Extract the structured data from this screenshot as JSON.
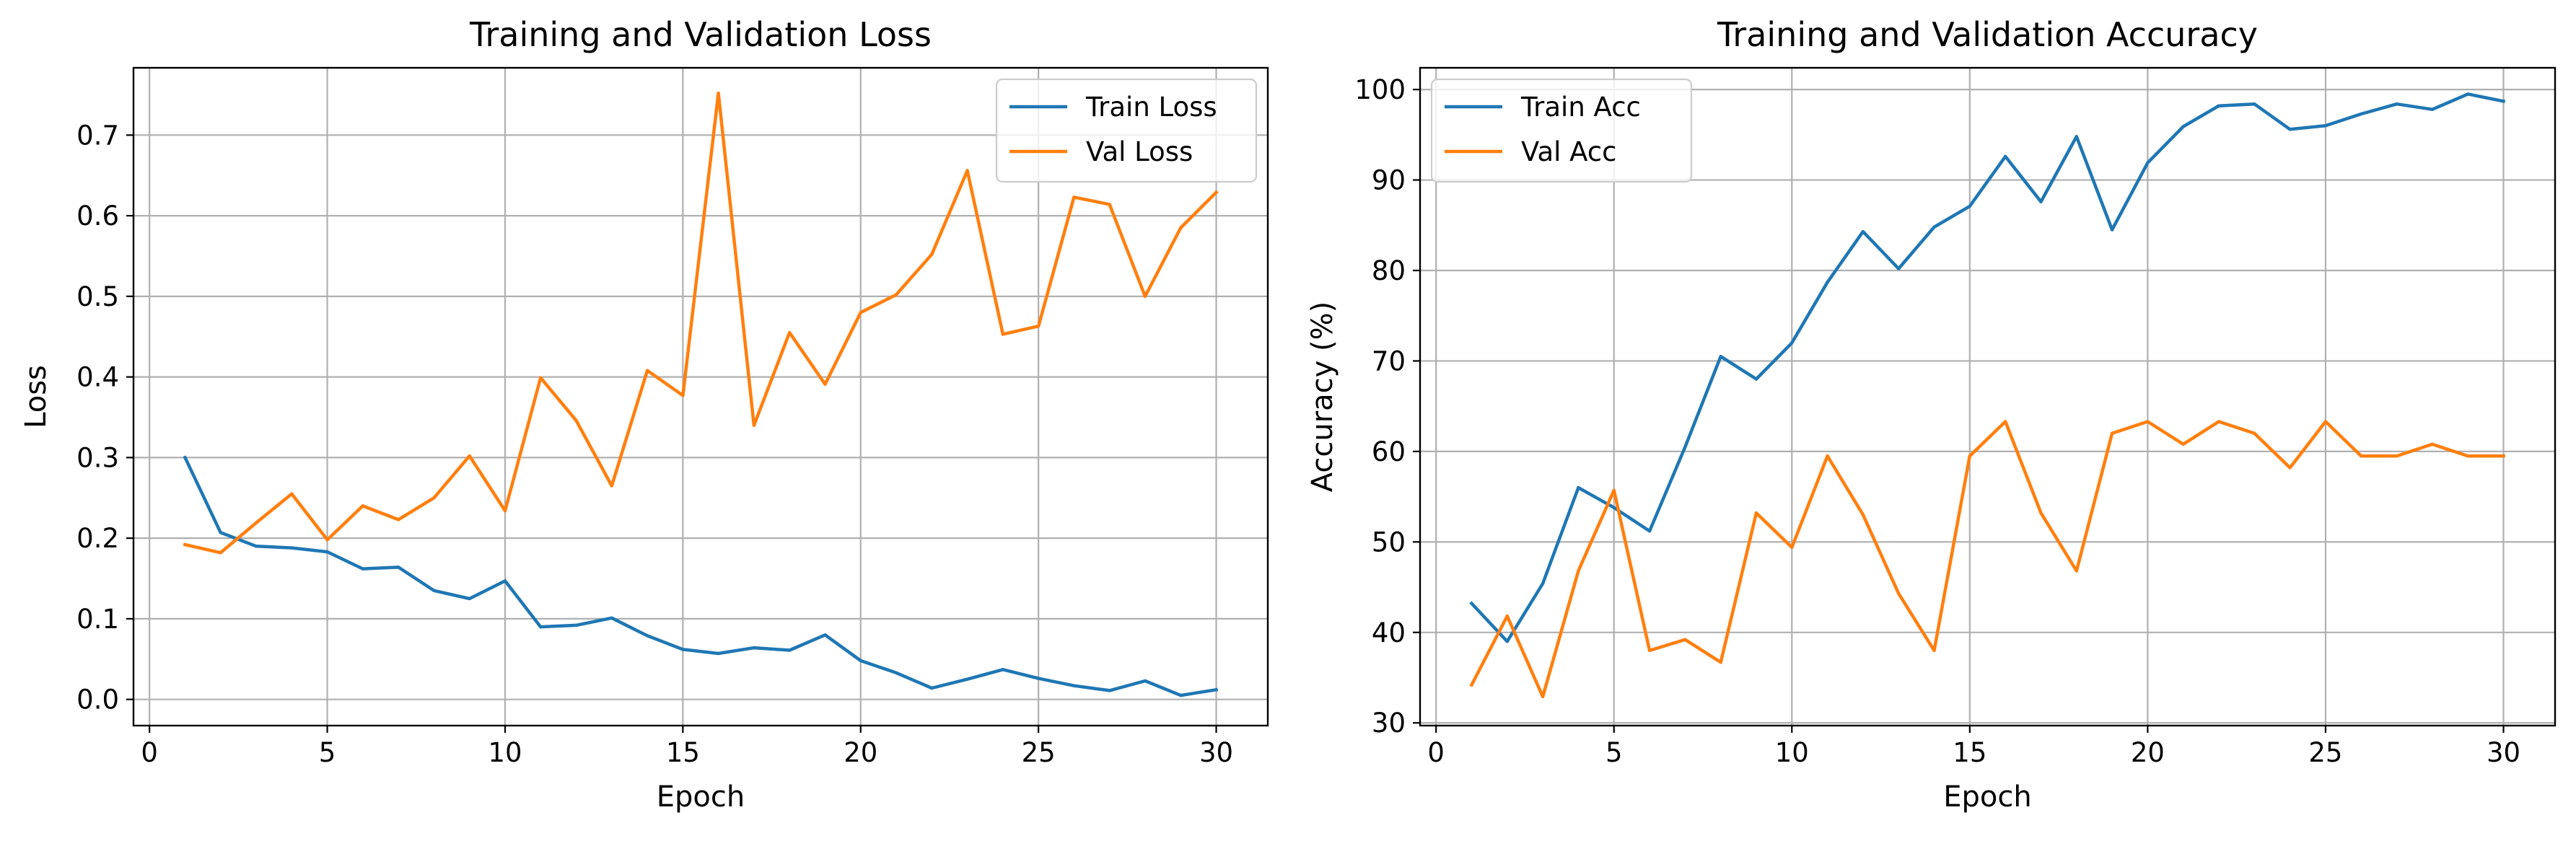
{
  "figure": {
    "colors": {
      "train": "#1f77b4",
      "val": "#ff7f0e",
      "grid": "#b0b0b0",
      "axes": "#000000"
    }
  },
  "chart_data": [
    {
      "type": "line",
      "title": "Training and Validation Loss",
      "xlabel": "Epoch",
      "ylabel": "Loss",
      "xlim": [
        -0.45,
        31.45
      ],
      "ylim": [
        -0.0325,
        0.7835
      ],
      "xticks": [
        0,
        5,
        10,
        15,
        20,
        25,
        30
      ],
      "xtick_labels": [
        "0",
        "5",
        "10",
        "15",
        "20",
        "25",
        "30"
      ],
      "yticks": [
        0.0,
        0.1,
        0.2,
        0.3,
        0.4,
        0.5,
        0.6,
        0.7
      ],
      "ytick_labels": [
        "0.0",
        "0.1",
        "0.2",
        "0.3",
        "0.4",
        "0.5",
        "0.6",
        "0.7"
      ],
      "grid": true,
      "legend_position": "top-right",
      "x": [
        1,
        2,
        3,
        4,
        5,
        6,
        7,
        8,
        9,
        10,
        11,
        12,
        13,
        14,
        15,
        16,
        17,
        18,
        19,
        20,
        21,
        22,
        23,
        24,
        25,
        26,
        27,
        28,
        29,
        30
      ],
      "series": [
        {
          "name": "Train Loss",
          "color": "#1f77b4",
          "values": [
            0.3,
            0.207,
            0.19,
            0.188,
            0.183,
            0.162,
            0.164,
            0.135,
            0.125,
            0.147,
            0.09,
            0.092,
            0.101,
            0.079,
            0.062,
            0.057,
            0.064,
            0.061,
            0.08,
            0.048,
            0.033,
            0.014,
            0.025,
            0.037,
            0.026,
            0.017,
            0.011,
            0.023,
            0.005,
            0.012
          ]
        },
        {
          "name": "Val Loss",
          "color": "#ff7f0e",
          "values": [
            0.192,
            0.182,
            0.219,
            0.255,
            0.198,
            0.24,
            0.223,
            0.25,
            0.302,
            0.234,
            0.399,
            0.346,
            0.265,
            0.408,
            0.377,
            0.752,
            0.34,
            0.455,
            0.391,
            0.48,
            0.502,
            0.552,
            0.656,
            0.453,
            0.463,
            0.623,
            0.614,
            0.5,
            0.585,
            0.629
          ]
        }
      ]
    },
    {
      "type": "line",
      "title": "Training and Validation Accuracy",
      "xlabel": "Epoch",
      "ylabel": "Accuracy (%)",
      "xlim": [
        -0.45,
        31.45
      ],
      "ylim": [
        29.7,
        102.4
      ],
      "xticks": [
        0,
        5,
        10,
        15,
        20,
        25,
        30
      ],
      "xtick_labels": [
        "0",
        "5",
        "10",
        "15",
        "20",
        "25",
        "30"
      ],
      "yticks": [
        30,
        40,
        50,
        60,
        70,
        80,
        90,
        100
      ],
      "ytick_labels": [
        "30",
        "40",
        "50",
        "60",
        "70",
        "80",
        "90",
        "100"
      ],
      "grid": true,
      "legend_position": "top-left",
      "x": [
        1,
        2,
        3,
        4,
        5,
        6,
        7,
        8,
        9,
        10,
        11,
        12,
        13,
        14,
        15,
        16,
        17,
        18,
        19,
        20,
        21,
        22,
        23,
        24,
        25,
        26,
        27,
        28,
        29,
        30
      ],
      "series": [
        {
          "name": "Train Acc",
          "color": "#1f77b4",
          "values": [
            43.2,
            39.0,
            45.4,
            56.0,
            53.8,
            51.2,
            60.5,
            70.5,
            68.0,
            72.0,
            78.7,
            84.3,
            80.2,
            84.8,
            87.1,
            92.6,
            87.6,
            94.8,
            84.5,
            91.9,
            95.9,
            98.2,
            98.4,
            95.6,
            96.0,
            97.3,
            98.4,
            97.8,
            99.5,
            98.7
          ]
        },
        {
          "name": "Val Acc",
          "color": "#ff7f0e",
          "values": [
            34.2,
            41.8,
            32.9,
            46.8,
            55.7,
            38.0,
            39.2,
            36.7,
            53.2,
            49.4,
            59.5,
            53.0,
            44.3,
            38.0,
            59.5,
            63.3,
            53.2,
            46.8,
            62.0,
            63.3,
            60.8,
            63.3,
            62.0,
            58.2,
            63.3,
            59.5,
            59.5,
            60.8,
            59.5,
            59.5
          ]
        }
      ]
    }
  ]
}
